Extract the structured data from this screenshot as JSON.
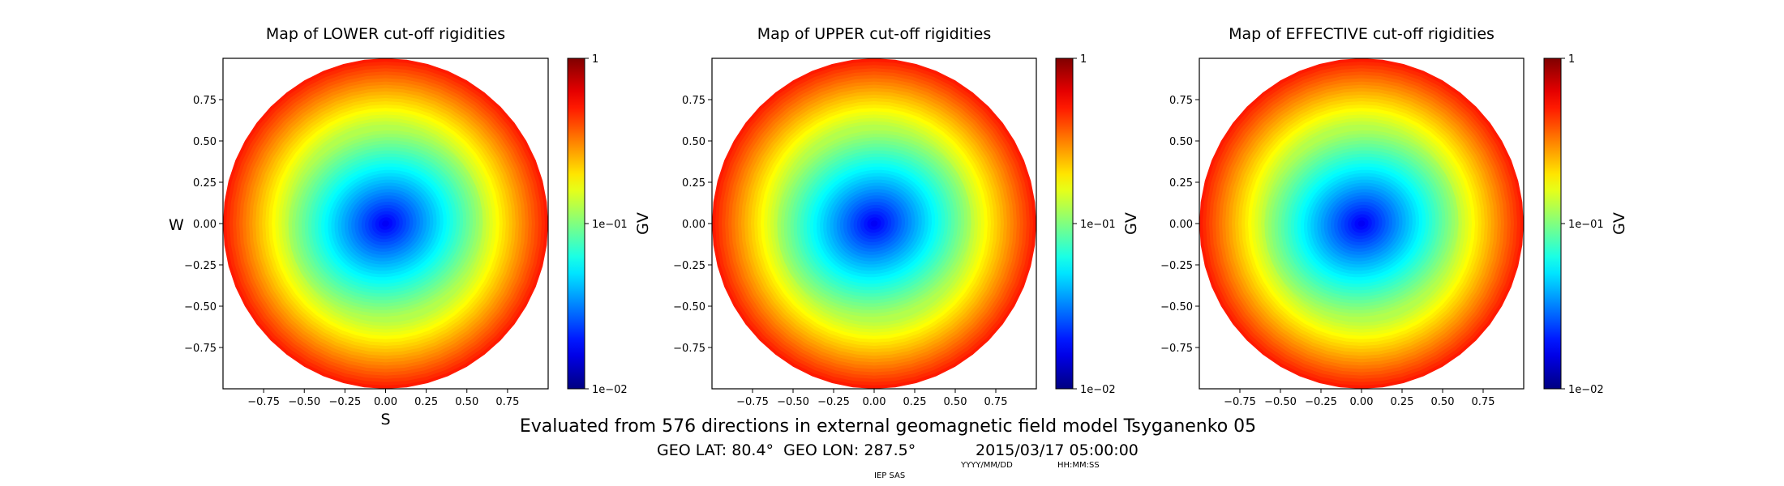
{
  "chart_data": [
    {
      "type": "heatmap",
      "title": "Map of LOWER cut-off rigidities",
      "xlabel": "S",
      "ylabel": "W",
      "xlim": [
        -1,
        1
      ],
      "ylim": [
        -1,
        1
      ],
      "xticks": [
        "−0.75",
        "−0.50",
        "−0.25",
        "0.00",
        "0.25",
        "0.50",
        "0.75"
      ],
      "yticks": [
        "0.75",
        "0.50",
        "0.25",
        "0.00",
        "−0.25",
        "−0.50",
        "−0.75"
      ],
      "colorbar": {
        "label": "GV",
        "scale": "log",
        "range": [
          0.01,
          1
        ],
        "ticks": [
          "1",
          "1e−01",
          "1e−02"
        ],
        "colormap": "jet"
      },
      "center_value": 0.016,
      "edge_value": 0.5
    },
    {
      "type": "heatmap",
      "title": "Map of UPPER cut-off rigidities",
      "xlabel": "",
      "ylabel": "",
      "xlim": [
        -1,
        1
      ],
      "ylim": [
        -1,
        1
      ],
      "xticks": [
        "−0.75",
        "−0.50",
        "−0.25",
        "0.00",
        "0.25",
        "0.50",
        "0.75"
      ],
      "yticks": [
        "0.75",
        "0.50",
        "0.25",
        "0.00",
        "−0.25",
        "−0.50",
        "−0.75"
      ],
      "colorbar": {
        "label": "GV",
        "scale": "log",
        "range": [
          0.01,
          1
        ],
        "ticks": [
          "1",
          "1e−01",
          "1e−02"
        ],
        "colormap": "jet"
      },
      "center_value": 0.016,
      "edge_value": 0.5
    },
    {
      "type": "heatmap",
      "title": "Map of EFFECTIVE cut-off rigidities",
      "xlabel": "",
      "ylabel": "",
      "xlim": [
        -1,
        1
      ],
      "ylim": [
        -1,
        1
      ],
      "xticks": [
        "−0.75",
        "−0.50",
        "−0.25",
        "0.00",
        "0.25",
        "0.50",
        "0.75"
      ],
      "yticks": [
        "0.75",
        "0.50",
        "0.25",
        "0.00",
        "−0.25",
        "−0.50",
        "−0.75"
      ],
      "colorbar": {
        "label": "GV",
        "scale": "log",
        "range": [
          0.01,
          1
        ],
        "ticks": [
          "1",
          "1e−01",
          "1e−02"
        ],
        "colormap": "jet"
      },
      "center_value": 0.016,
      "edge_value": 0.5
    }
  ],
  "footer": {
    "subtitle": "Evaluated from 576 directions in external geomagnetic field model Tsyganenko 05",
    "location": "GEO LAT: 80.4°  GEO LON: 287.5°",
    "datetime": "2015/03/17 05:00:00",
    "date_format": "YYYY/MM/DD",
    "time_format": "HH:MM:SS",
    "credit": "IEP SAS"
  }
}
